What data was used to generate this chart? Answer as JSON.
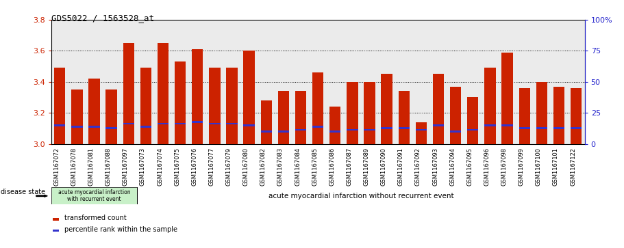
{
  "title": "GDS5022 / 1563528_at",
  "samples": [
    "GSM1167072",
    "GSM1167078",
    "GSM1167081",
    "GSM1167088",
    "GSM1167097",
    "GSM1167073",
    "GSM1167074",
    "GSM1167075",
    "GSM1167076",
    "GSM1167077",
    "GSM1167079",
    "GSM1167080",
    "GSM1167082",
    "GSM1167083",
    "GSM1167084",
    "GSM1167085",
    "GSM1167086",
    "GSM1167087",
    "GSM1167089",
    "GSM1167090",
    "GSM1167091",
    "GSM1167092",
    "GSM1167093",
    "GSM1167094",
    "GSM1167095",
    "GSM1167096",
    "GSM1167098",
    "GSM1167099",
    "GSM1167100",
    "GSM1167101",
    "GSM1167122"
  ],
  "values": [
    3.49,
    3.35,
    3.42,
    3.35,
    3.65,
    3.49,
    3.65,
    3.53,
    3.61,
    3.49,
    3.49,
    3.6,
    3.28,
    3.34,
    3.34,
    3.46,
    3.24,
    3.4,
    3.4,
    3.45,
    3.34,
    3.14,
    3.45,
    3.37,
    3.3,
    3.49,
    3.59,
    3.36,
    3.4,
    3.37,
    3.36
  ],
  "percentile_values": [
    3.12,
    3.11,
    3.11,
    3.1,
    3.13,
    3.11,
    3.13,
    3.13,
    3.14,
    3.13,
    3.13,
    3.12,
    3.08,
    3.08,
    3.09,
    3.11,
    3.08,
    3.09,
    3.09,
    3.1,
    3.1,
    3.09,
    3.12,
    3.08,
    3.09,
    3.12,
    3.12,
    3.1,
    3.1,
    3.1,
    3.1
  ],
  "group1_count": 5,
  "group1_label": "acute myocardial infarction\nwith recurrent event",
  "group2_label": "acute myocardial infarction without recurrent event",
  "bar_color": "#cc2200",
  "percentile_color": "#3333cc",
  "group_bg": "#7dce7d",
  "ymin": 3.0,
  "ymax": 3.8,
  "yticks": [
    3.0,
    3.2,
    3.4,
    3.6,
    3.8
  ],
  "right_yticks": [
    0,
    25,
    50,
    75,
    100
  ],
  "right_ytick_labels": [
    "0",
    "25",
    "50",
    "75",
    "100%"
  ],
  "left_tick_color": "#cc2200",
  "right_tick_color": "#2222cc",
  "disease_state_label": "disease state",
  "legend_red": "transformed count",
  "legend_blue": "percentile rank within the sample",
  "plot_bg": "#ebebeb",
  "bar_width": 0.65
}
